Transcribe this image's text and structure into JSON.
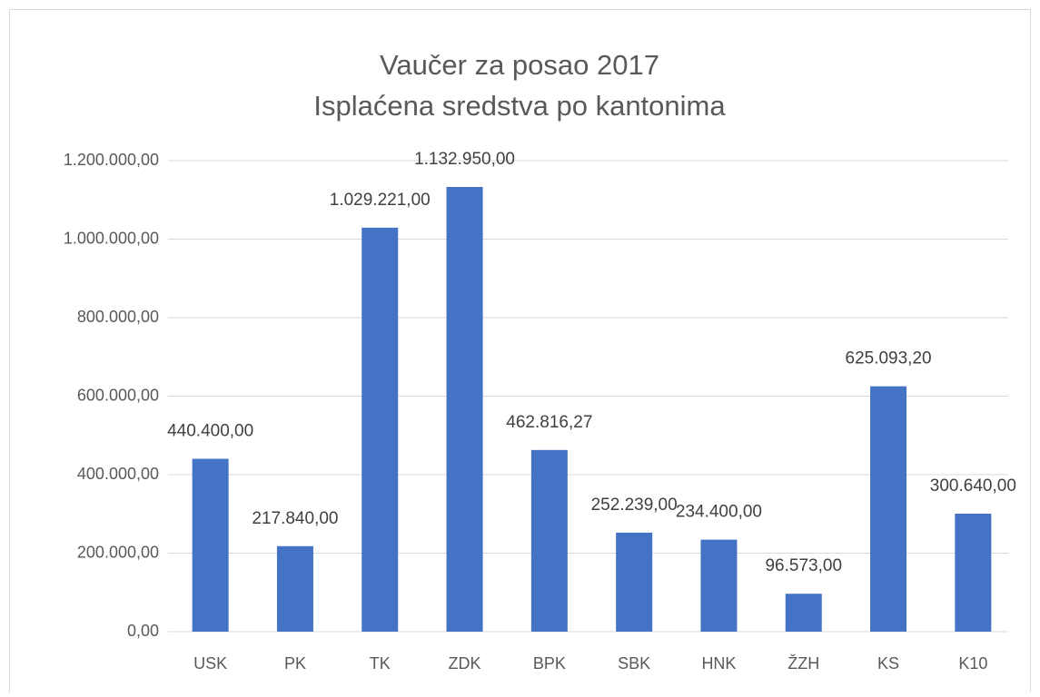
{
  "chart_data": {
    "type": "bar",
    "title": "Vaučer za posao 2017",
    "subtitle": "Isplaćena sredstva po kantonima",
    "categories": [
      "USK",
      "PK",
      "TK",
      "ZDK",
      "BPK",
      "SBK",
      "HNK",
      "ŽZH",
      "KS",
      "K10"
    ],
    "values": [
      440400,
      217840,
      1029221,
      1132950,
      462816.27,
      252239,
      234400,
      96573,
      625093.2,
      300640
    ],
    "value_labels": [
      "440.400,00",
      "217.840,00",
      "1.029.221,00",
      "1.132.950,00",
      "462.816,27",
      "252.239,00",
      "234.400,00",
      "96.573,00",
      "625.093,20",
      "300.640,00"
    ],
    "color": "#4472c4",
    "ylim": [
      0,
      1200000
    ],
    "yticks": [
      {
        "value": 0,
        "label": "0,00"
      },
      {
        "value": 200000,
        "label": "200.000,00"
      },
      {
        "value": 400000,
        "label": "400.000,00"
      },
      {
        "value": 600000,
        "label": "600.000,00"
      },
      {
        "value": 800000,
        "label": "800.000,00"
      },
      {
        "value": 1000000,
        "label": "1.000.000,00"
      },
      {
        "value": 1200000,
        "label": "1.200.000,00"
      }
    ],
    "grid": true
  }
}
